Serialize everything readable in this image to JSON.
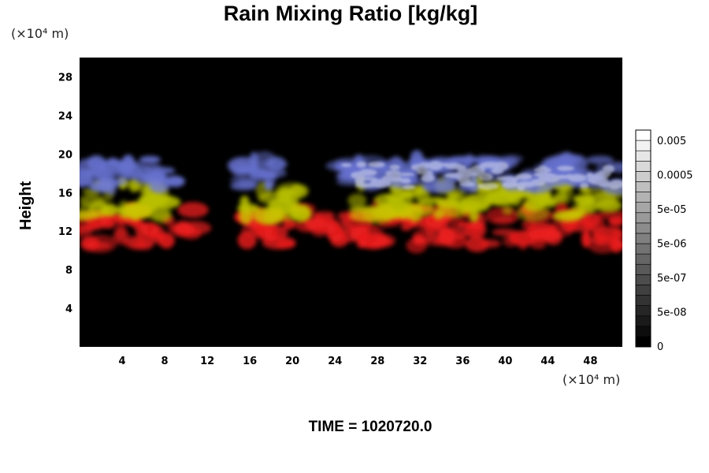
{
  "chart_data": {
    "type": "heatmap",
    "title": "Rain Mixing Ratio [kg/kg]",
    "ylabel": "Height",
    "y_unit": "(×10⁴ m)",
    "x_unit": "(×10⁴ m)",
    "xlim": [
      0,
      51
    ],
    "ylim": [
      0,
      30
    ],
    "x_ticks": [
      4,
      8,
      12,
      16,
      20,
      24,
      28,
      32,
      36,
      40,
      44,
      48
    ],
    "y_ticks": [
      4,
      8,
      12,
      16,
      20,
      24,
      28
    ],
    "x_tick_labels": [
      "4",
      "8",
      "12",
      "16",
      "20",
      "24",
      "28",
      "32",
      "36",
      "40",
      "44",
      "48"
    ],
    "y_tick_labels": [
      "4",
      "8",
      "12",
      "16",
      "20",
      "24",
      "28"
    ],
    "colorbar": {
      "labels": [
        "0.005",
        "0.0005",
        "5e-05",
        "5e-06",
        "5e-07",
        "5e-08",
        "0"
      ],
      "n_levels": 21,
      "scale": "log"
    },
    "background_color": "#000000",
    "layers": [
      {
        "color": "#ff2020",
        "y_range": [
          10.5,
          14.5
        ]
      },
      {
        "color": "#c8d000",
        "y_range": [
          13.5,
          17
        ]
      },
      {
        "color": "#6f7be0",
        "y_range": [
          16.5,
          19.5
        ]
      }
    ],
    "grid": false
  },
  "footer": {
    "time_label": "TIME = 1020720.0"
  }
}
